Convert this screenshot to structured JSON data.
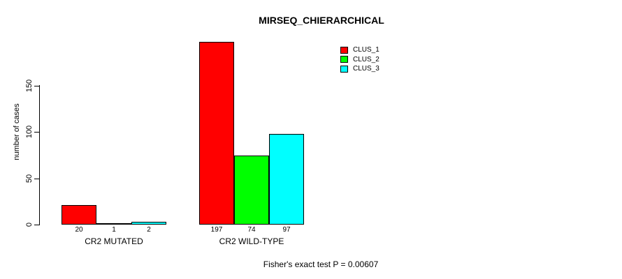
{
  "chart_data": {
    "type": "bar",
    "title": "MIRSEQ_CHIERARCHICAL",
    "ylabel": "number of cases",
    "xlabel": "",
    "categories": [
      "CR2 MUTATED",
      "CR2 WILD-TYPE"
    ],
    "series": [
      {
        "name": "CLUS_1",
        "color": "#FF0000",
        "values": [
          20,
          197
        ]
      },
      {
        "name": "CLUS_2",
        "color": "#00FF00",
        "values": [
          1,
          74
        ]
      },
      {
        "name": "CLUS_3",
        "color": "#00FFFF",
        "values": [
          2,
          97
        ]
      }
    ],
    "y_ticks": [
      "0",
      "50",
      "100",
      "150"
    ],
    "ylim": [
      0,
      200
    ],
    "grid": false,
    "legend_position": "top-right",
    "bar_border_color": "#000000",
    "background": "#FFFFFF",
    "annotation": "Fisher's exact test P = 0.00607"
  }
}
